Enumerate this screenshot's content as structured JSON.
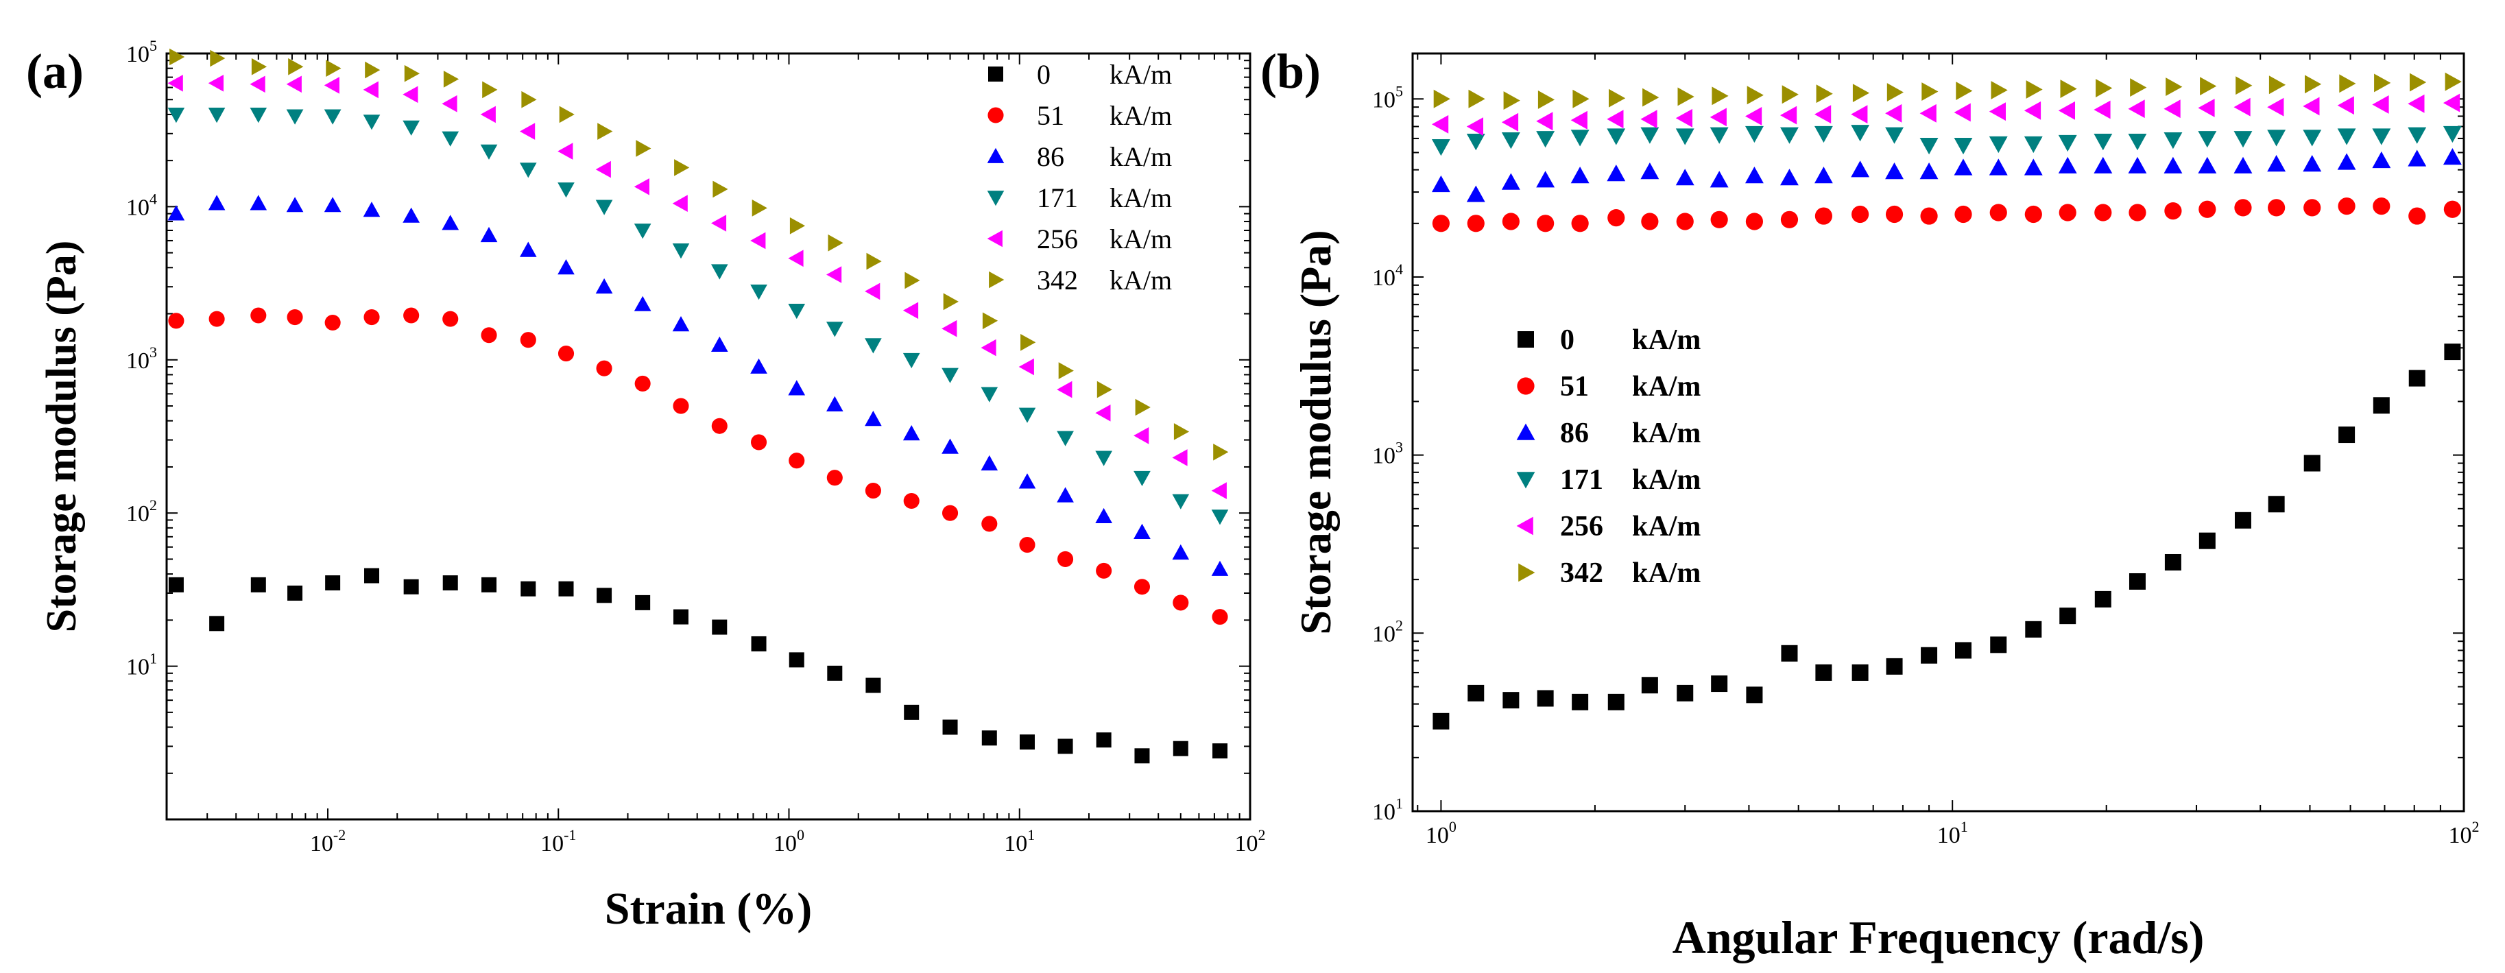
{
  "chart_data": [
    {
      "panel": "(a)",
      "type": "scatter",
      "xscale": "log",
      "yscale": "log",
      "xlabel": "Strain (%)",
      "ylabel": "Storage modulus (Pa)",
      "xlim": [
        0.002,
        100
      ],
      "ylim": [
        1,
        100000
      ],
      "xticks": [
        {
          "base": "10",
          "exp": "-2"
        },
        {
          "base": "10",
          "exp": "-1"
        },
        {
          "base": "10",
          "exp": "0"
        },
        {
          "base": "10",
          "exp": "1"
        },
        {
          "base": "10",
          "exp": "2"
        }
      ],
      "yticks": [
        {
          "base": "10",
          "exp": "1"
        },
        {
          "base": "10",
          "exp": "2"
        },
        {
          "base": "10",
          "exp": "3"
        },
        {
          "base": "10",
          "exp": "4"
        },
        {
          "base": "10",
          "exp": "5"
        }
      ],
      "legend_position": "top-right",
      "x": [
        0.0022,
        0.0033,
        0.005,
        0.0072,
        0.0105,
        0.0155,
        0.023,
        0.034,
        0.05,
        0.074,
        0.108,
        0.158,
        0.232,
        0.34,
        0.5,
        0.74,
        1.08,
        1.58,
        2.32,
        3.4,
        5.0,
        7.4,
        10.8,
        15.8,
        23.2,
        34,
        50,
        74
      ],
      "series": [
        {
          "name": "0",
          "unit": "kA/m",
          "marker": "square",
          "color": "#000000",
          "values": [
            34,
            19,
            34,
            30,
            35,
            39,
            33,
            35,
            34,
            32,
            32,
            29,
            26,
            21,
            18,
            14,
            11,
            9,
            7.5,
            5,
            4,
            3.4,
            3.2,
            3.0,
            3.3,
            2.6,
            2.9,
            2.8
          ]
        },
        {
          "name": "51",
          "unit": "kA/m",
          "marker": "circle",
          "color": "#ff0000",
          "values": [
            1800,
            1850,
            1950,
            1900,
            1750,
            1900,
            1950,
            1850,
            1450,
            1350,
            1100,
            880,
            700,
            500,
            370,
            290,
            220,
            170,
            140,
            120,
            100,
            85,
            62,
            50,
            42,
            33,
            26,
            21
          ]
        },
        {
          "name": "86",
          "unit": "kA/m",
          "marker": "triangle-up",
          "color": "#0000ff",
          "values": [
            9000,
            10500,
            10500,
            10200,
            10200,
            9500,
            8700,
            7800,
            6500,
            5200,
            4000,
            3000,
            2300,
            1700,
            1250,
            900,
            650,
            510,
            410,
            330,
            270,
            210,
            160,
            130,
            95,
            75,
            55,
            43
          ]
        },
        {
          "name": "171",
          "unit": "kA/m",
          "marker": "triangle-down",
          "color": "#008080",
          "values": [
            40000,
            40000,
            40000,
            39000,
            39000,
            36000,
            33000,
            28000,
            23000,
            17500,
            13000,
            10000,
            7000,
            5200,
            3800,
            2800,
            2100,
            1600,
            1250,
            1000,
            800,
            600,
            440,
            310,
            230,
            170,
            120,
            95
          ]
        },
        {
          "name": "256",
          "unit": "kA/m",
          "marker": "triangle-left",
          "color": "#ff00ff",
          "values": [
            64000,
            64000,
            63000,
            63000,
            62000,
            58000,
            54000,
            47000,
            40000,
            31000,
            23000,
            17500,
            13500,
            10500,
            7800,
            6000,
            4600,
            3600,
            2800,
            2100,
            1600,
            1200,
            900,
            640,
            450,
            320,
            230,
            140
          ]
        },
        {
          "name": "342",
          "unit": "kA/m",
          "marker": "triangle-right",
          "color": "#9b8f00",
          "values": [
            95000,
            93000,
            82000,
            82000,
            80000,
            78000,
            74000,
            68000,
            58000,
            50000,
            40000,
            31000,
            24000,
            18000,
            13000,
            9800,
            7500,
            5800,
            4400,
            3300,
            2400,
            1800,
            1300,
            850,
            640,
            490,
            340,
            250
          ]
        }
      ]
    },
    {
      "panel": "(b)",
      "type": "scatter",
      "xscale": "log",
      "yscale": "log",
      "xlabel": "Angular Frequency (rad/s)",
      "ylabel": "Storage modulus (Pa)",
      "xlim": [
        0.88,
        100
      ],
      "ylim": [
        10,
        180000
      ],
      "xticks": [
        {
          "base": "10",
          "exp": "0"
        },
        {
          "base": "10",
          "exp": "1"
        },
        {
          "base": "10",
          "exp": "2"
        }
      ],
      "yticks": [
        {
          "base": "10",
          "exp": "1"
        },
        {
          "base": "10",
          "exp": "2"
        },
        {
          "base": "10",
          "exp": "3"
        },
        {
          "base": "10",
          "exp": "4"
        },
        {
          "base": "10",
          "exp": "5"
        }
      ],
      "legend_position": "center-left",
      "x": [
        1.0,
        1.17,
        1.37,
        1.6,
        1.87,
        2.2,
        2.56,
        3.0,
        3.5,
        4.1,
        4.8,
        5.6,
        6.6,
        7.7,
        9.0,
        10.5,
        12.3,
        14.4,
        16.8,
        19.7,
        23,
        27,
        31.5,
        37,
        43,
        50.5,
        59,
        69,
        81,
        95
      ],
      "series": [
        {
          "name": "0",
          "unit": "kA/m",
          "marker": "square",
          "color": "#000000",
          "values": [
            32,
            46,
            42,
            43,
            41,
            41,
            51,
            46,
            52,
            45,
            77,
            60,
            60,
            65,
            75,
            80,
            86,
            105,
            125,
            155,
            195,
            250,
            330,
            430,
            530,
            900,
            1300,
            1900,
            2700,
            3800
          ]
        },
        {
          "name": "51",
          "unit": "kA/m",
          "marker": "circle",
          "color": "#ff0000",
          "values": [
            20000,
            20000,
            20500,
            20000,
            20000,
            21500,
            20500,
            20500,
            21000,
            20500,
            21000,
            22000,
            22500,
            22500,
            22000,
            22500,
            23000,
            22500,
            23000,
            23000,
            23000,
            23500,
            24000,
            24500,
            24500,
            24500,
            25000,
            25000,
            22000,
            24000
          ]
        },
        {
          "name": "86",
          "unit": "kA/m",
          "marker": "triangle-up",
          "color": "#0000ff",
          "values": [
            33000,
            29000,
            34000,
            35000,
            37000,
            38000,
            39000,
            36000,
            35000,
            37000,
            36000,
            37000,
            40000,
            39000,
            39000,
            41000,
            41000,
            41000,
            42000,
            42000,
            42000,
            42000,
            42000,
            42000,
            43000,
            43000,
            44000,
            45000,
            46000,
            47000
          ]
        },
        {
          "name": "171",
          "unit": "kA/m",
          "marker": "triangle-down",
          "color": "#008080",
          "values": [
            54000,
            58000,
            59000,
            60000,
            61000,
            62000,
            63000,
            62000,
            63000,
            64000,
            63000,
            64000,
            65000,
            63000,
            55000,
            55000,
            56000,
            56000,
            57000,
            58000,
            58000,
            59000,
            60000,
            60000,
            61000,
            61000,
            62000,
            62000,
            63000,
            64000
          ]
        },
        {
          "name": "256",
          "unit": "kA/m",
          "marker": "triangle-left",
          "color": "#ff00ff",
          "values": [
            72000,
            70000,
            74000,
            75000,
            76000,
            77000,
            77000,
            78000,
            79000,
            80000,
            81000,
            82000,
            82000,
            83000,
            83000,
            84000,
            85000,
            86000,
            86000,
            87000,
            88000,
            88000,
            89000,
            90000,
            90000,
            91000,
            92000,
            93000,
            94000,
            95000
          ]
        },
        {
          "name": "342",
          "unit": "kA/m",
          "marker": "triangle-right",
          "color": "#9b8f00",
          "values": [
            100000,
            100000,
            98000,
            99000,
            100000,
            101000,
            102000,
            103000,
            104000,
            105000,
            106000,
            107000,
            108000,
            109000,
            110000,
            111000,
            112000,
            113000,
            114000,
            115000,
            116000,
            117000,
            118000,
            119000,
            120000,
            121000,
            122000,
            123000,
            124000,
            125000
          ]
        }
      ]
    }
  ]
}
